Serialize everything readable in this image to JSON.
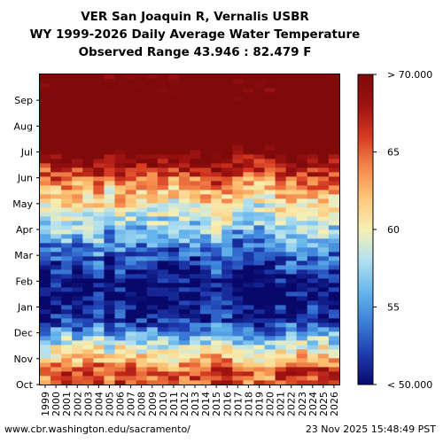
{
  "header": {
    "line1": "VER San Joaquin R, Vernalis USBR",
    "line2": "WY 1999-2026 Daily Average Water Temperature",
    "line3": "Observed Range 43.946 : 82.479 F"
  },
  "footer": {
    "url": "www.cbr.washington.edu/sacramento/",
    "timestamp": "23 Nov 2025 15:48:49 PST"
  },
  "colors": {
    "scale": [
      "#08086b",
      "#1f3cb0",
      "#3b7fd8",
      "#67b6ec",
      "#b2e0f0",
      "#f6efb4",
      "#fdc87a",
      "#f4874a",
      "#d63a22",
      "#9e1212",
      "#7f0a0a"
    ]
  },
  "chart_data": {
    "type": "heatmap",
    "x": [
      "1999",
      "2000",
      "2001",
      "2002",
      "2003",
      "2004",
      "2005",
      "2006",
      "2007",
      "2008",
      "2009",
      "2010",
      "2011",
      "2012",
      "2013",
      "2014",
      "2015",
      "2016",
      "2017",
      "2018",
      "2019",
      "2020",
      "2021",
      "2022",
      "2023",
      "2024",
      "2025",
      "2026"
    ],
    "y_months": [
      "Oct",
      "Nov",
      "Dec",
      "Jan",
      "Feb",
      "Mar",
      "Apr",
      "May",
      "Jun",
      "Jul",
      "Aug",
      "Sep"
    ],
    "colorbar": {
      "min": 50,
      "max": 70,
      "ticks": [
        {
          "value": 50,
          "label": "< 50.000"
        },
        {
          "value": 55,
          "label": "55"
        },
        {
          "value": 60,
          "label": "60"
        },
        {
          "value": 65,
          "label": "65"
        },
        {
          "value": 70,
          "label": "> 70.000"
        }
      ]
    },
    "approx_monthly_mean_temp_F": {
      "Oct": 65.5,
      "Nov": 58.5,
      "Dec": 51.5,
      "Jan": 49.5,
      "Feb": 51.5,
      "Mar": 55.0,
      "Apr": 58.5,
      "May": 62.5,
      "Jun": 68.0,
      "Jul": 74.0,
      "Aug": 75.0,
      "Sep": 72.0
    }
  }
}
